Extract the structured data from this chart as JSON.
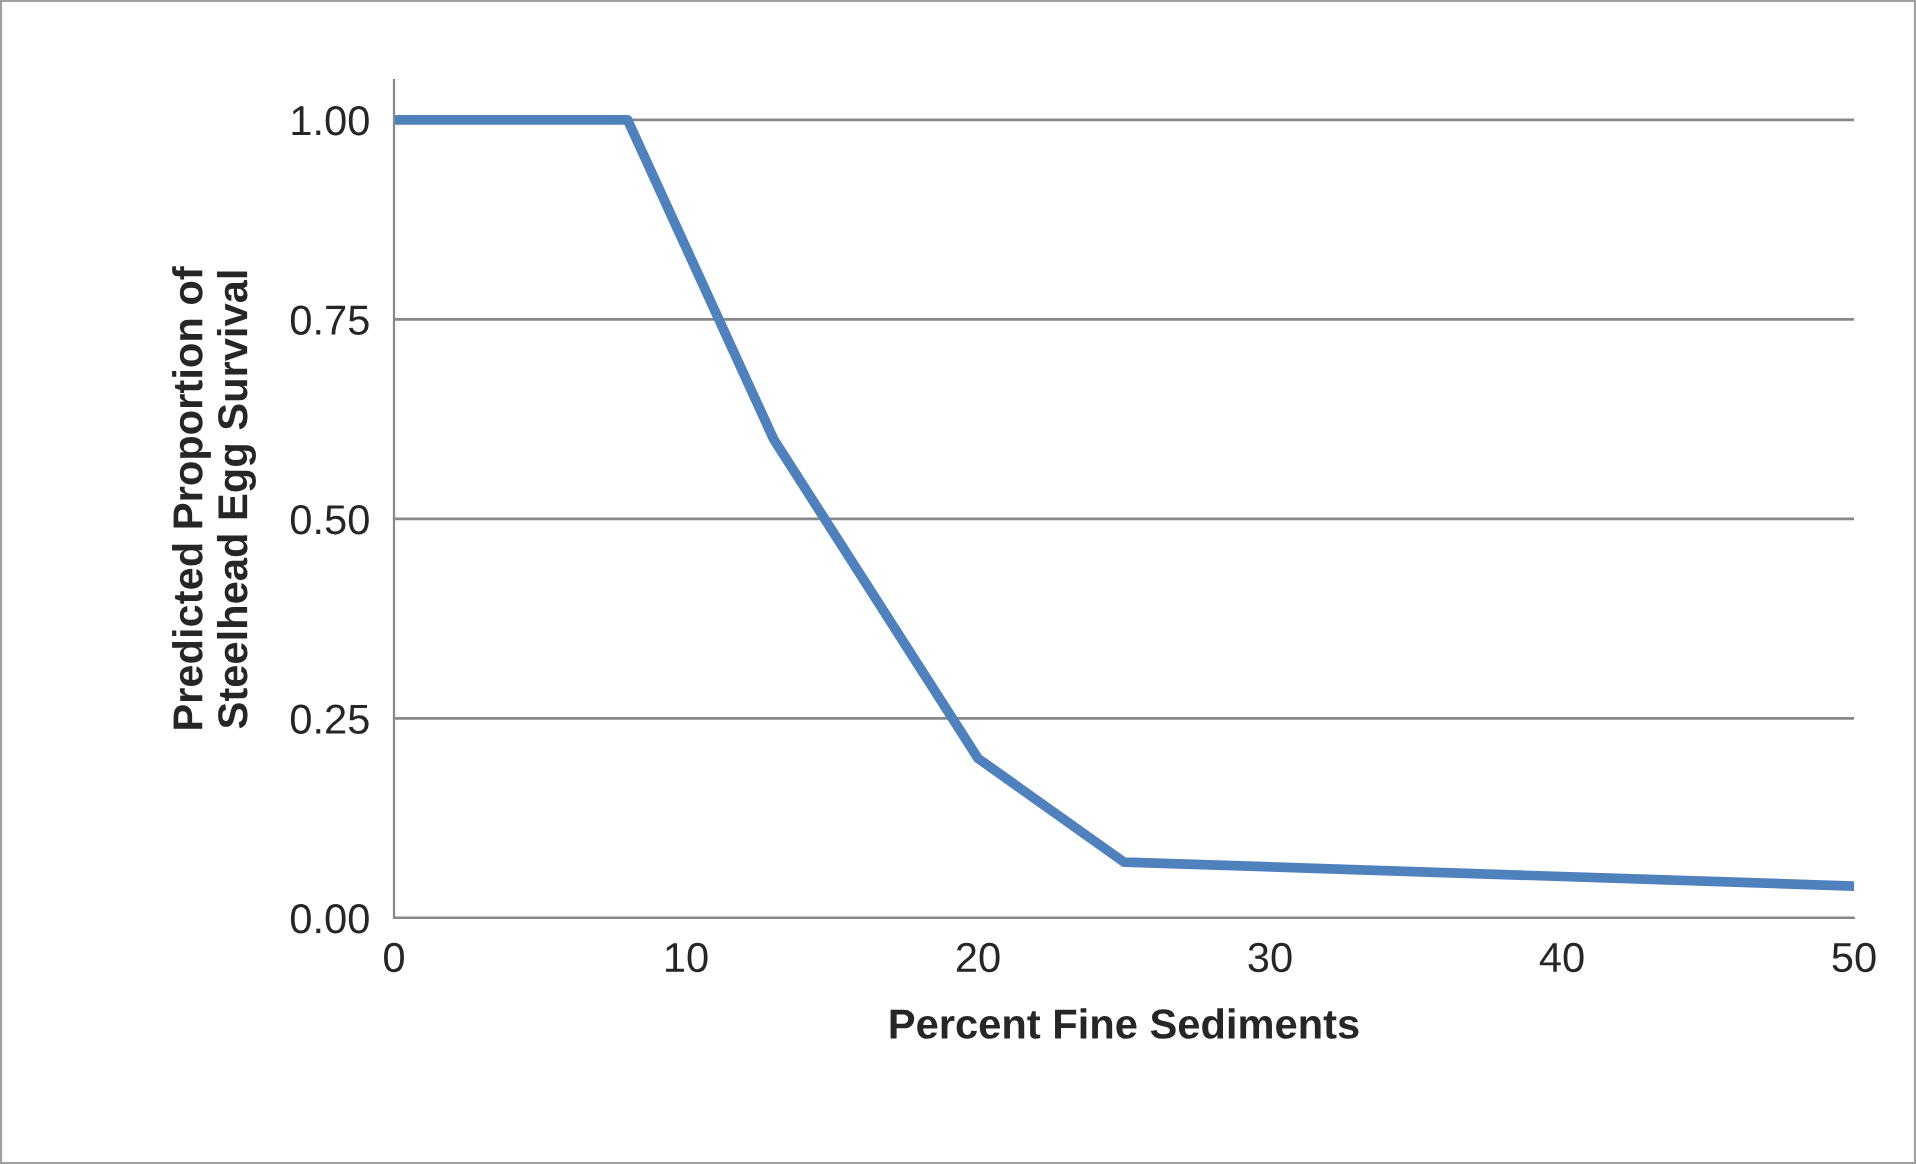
{
  "chart_data": {
    "type": "line",
    "xlabel": "Percent Fine Sediments",
    "ylabel": "Predicted Proportion of\nSteelhead Egg Survival",
    "x": [
      0,
      8,
      13,
      20,
      25,
      50
    ],
    "series": [
      {
        "color": "#4f81bd",
        "values": [
          1.0,
          1.0,
          0.6,
          0.2,
          0.07,
          0.04
        ]
      }
    ],
    "xlim": [
      0,
      50
    ],
    "xticks": [
      0,
      10,
      20,
      30,
      40,
      50
    ],
    "ylim": [
      0,
      1.05
    ],
    "yticks": [
      {
        "value": 0,
        "label": "0.00"
      },
      {
        "value": 0.25,
        "label": "0.25"
      },
      {
        "value": 0.5,
        "label": "0.50"
      },
      {
        "value": 0.75,
        "label": "0.75"
      },
      {
        "value": 1.0,
        "label": "1.00"
      }
    ],
    "grid": "y",
    "legend": false,
    "marker": "none",
    "line_style": "solid"
  }
}
